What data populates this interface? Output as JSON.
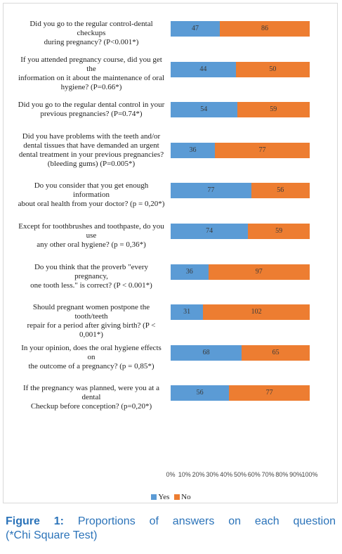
{
  "chart_data": {
    "type": "bar",
    "orientation": "horizontal",
    "stacked": "percent",
    "categories": [
      "Did you go to the regular control-dental checkups during pregnancy? (P<0.001*)",
      "If you attended pregnancy course, did you get the information on it about the maintenance of oral hygiene? (P=0.66*)",
      "Did you go to the regular dental control in your previous pregnancies? (P=0.74*)",
      "Did you have problems with the teeth and/or dental tissues that have demanded an urgent dental treatment in your previous pregnancies? (bleeding gums) (P=0.005*)",
      "Do you consider that you get enough information about oral health from your doctor? (p = 0,20*)",
      "Except for toothbrushes and toothpaste, do you use any other oral hygiene? (p = 0,36*)",
      "Do you think that the proverb \"every pregnancy, one tooth less.\" is correct? (P < 0.001*)",
      "Should pregnant women postpone the tooth/teeth repair for a period after giving birth? (P < 0,001*)",
      "In your opinion, does the oral hygiene effects on the outcome of a pregnancy? (p = 0,85*)",
      "If the pregnancy was planned, were you at a dental Checkup before conception? (p=0,20*)"
    ],
    "category_lines": [
      [
        "Did you go to the regular control-dental checkups",
        "during pregnancy? (P<0.001*)"
      ],
      [
        "If you attended pregnancy course, did you get the",
        "information on it about the maintenance of oral",
        "hygiene? (P=0.66*)"
      ],
      [
        "Did you go to the regular dental control in your",
        "previous pregnancies? (P=0.74*)"
      ],
      [
        "Did you have problems with the teeth and/or",
        "dental tissues that have demanded an urgent",
        "dental treatment in your previous pregnancies?",
        "(bleeding gums) (P=0.005*)"
      ],
      [
        "Do you consider that you get enough information",
        "about oral health from your doctor? (p = 0,20*)"
      ],
      [
        "Except for toothbrushes and toothpaste, do you use",
        "any other oral hygiene? (p = 0,36*)"
      ],
      [
        "Do you think that the proverb \"every pregnancy,",
        "one tooth less.\" is correct? (P < 0.001*)"
      ],
      [
        "Should pregnant women postpone the tooth/teeth",
        "repair for a period after giving birth? (P < 0,001*)"
      ],
      [
        "In your opinion, does the oral hygiene effects on",
        "the outcome of a pregnancy? (p = 0,85*)"
      ],
      [
        "If the pregnancy was planned, were you at a dental",
        "Checkup before conception? (p=0,20*)"
      ]
    ],
    "series": [
      {
        "name": "Yes",
        "color": "#5b9bd5",
        "values": [
          47,
          44,
          54,
          36,
          77,
          74,
          36,
          31,
          68,
          56
        ]
      },
      {
        "name": "No",
        "color": "#ed7d31",
        "values": [
          86,
          50,
          59,
          77,
          56,
          59,
          97,
          102,
          65,
          77
        ]
      }
    ],
    "xticks": [
      "0%",
      "10%",
      "20%",
      "30%",
      "40%",
      "50%",
      "60%",
      "70%",
      "80%",
      "90%",
      "100%"
    ],
    "xlim": [
      0,
      100
    ],
    "grid": false,
    "legend": "bottom"
  },
  "caption": {
    "label": "Figure 1:",
    "line1": " Proportions of answers on each question",
    "line2": "(*Chi Square Test)"
  }
}
